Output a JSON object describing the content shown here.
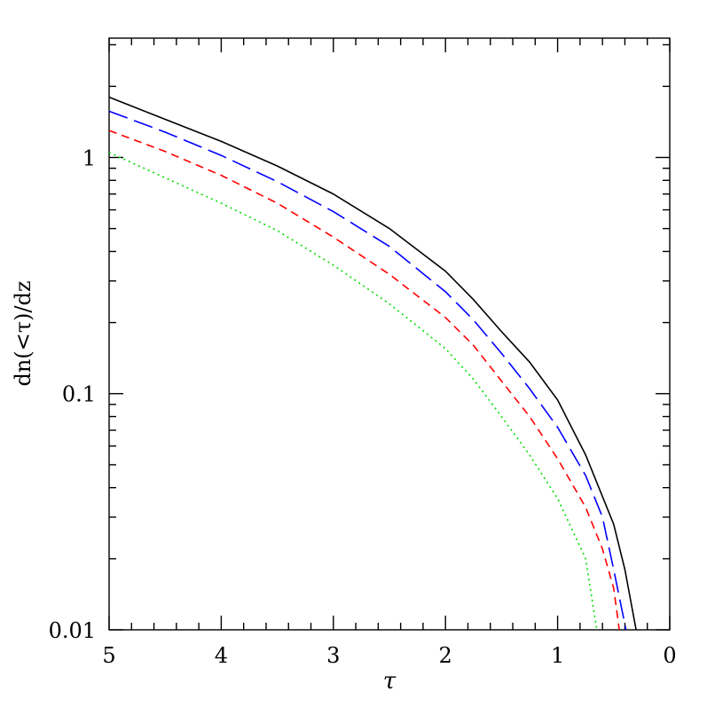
{
  "chart_data": {
    "type": "line",
    "title": "",
    "xlabel": "τ",
    "ylabel": "dn(<τ)/dz",
    "xlim": [
      5,
      0
    ],
    "x_reversed": true,
    "ylim": [
      0.01,
      3.2
    ],
    "yscale": "log",
    "grid": false,
    "legend": "none",
    "x_ticks": [
      {
        "value": 5,
        "label": "5"
      },
      {
        "value": 4,
        "label": "4"
      },
      {
        "value": 3,
        "label": "3"
      },
      {
        "value": 2,
        "label": "2"
      },
      {
        "value": 1,
        "label": "1"
      },
      {
        "value": 0,
        "label": "0"
      }
    ],
    "y_ticks": [
      {
        "value": 0.01,
        "label": "0.01"
      },
      {
        "value": 0.1,
        "label": "0.1"
      },
      {
        "value": 1,
        "label": "1"
      }
    ],
    "series": [
      {
        "style": "solid",
        "color": "#000000",
        "points": [
          [
            5,
            1.8
          ],
          [
            4.5,
            1.45
          ],
          [
            4,
            1.17
          ],
          [
            3.5,
            0.92
          ],
          [
            3,
            0.7
          ],
          [
            2.5,
            0.5
          ],
          [
            2,
            0.33
          ],
          [
            1.75,
            0.25
          ],
          [
            1.5,
            0.183
          ],
          [
            1.25,
            0.136
          ],
          [
            1,
            0.094
          ],
          [
            0.75,
            0.055
          ],
          [
            0.5,
            0.028
          ],
          [
            0.4,
            0.018
          ],
          [
            0.3,
            0.01
          ]
        ]
      },
      {
        "style": "long-dash",
        "color": "#0000ff",
        "points": [
          [
            5,
            1.57
          ],
          [
            4.5,
            1.28
          ],
          [
            4,
            1.02
          ],
          [
            3.5,
            0.79
          ],
          [
            3,
            0.59
          ],
          [
            2.5,
            0.42
          ],
          [
            2,
            0.27
          ],
          [
            1.75,
            0.205
          ],
          [
            1.5,
            0.148
          ],
          [
            1.25,
            0.105
          ],
          [
            1,
            0.072
          ],
          [
            0.75,
            0.045
          ],
          [
            0.6,
            0.03
          ],
          [
            0.5,
            0.018
          ],
          [
            0.39,
            0.01
          ]
        ]
      },
      {
        "style": "short-dash",
        "color": "#ff0000",
        "points": [
          [
            5,
            1.3
          ],
          [
            4.5,
            1.06
          ],
          [
            4,
            0.84
          ],
          [
            3.5,
            0.64
          ],
          [
            3,
            0.46
          ],
          [
            2.5,
            0.32
          ],
          [
            2,
            0.21
          ],
          [
            1.75,
            0.16
          ],
          [
            1.5,
            0.113
          ],
          [
            1.25,
            0.08
          ],
          [
            1,
            0.053
          ],
          [
            0.75,
            0.033
          ],
          [
            0.6,
            0.022
          ],
          [
            0.5,
            0.015
          ],
          [
            0.45,
            0.01
          ]
        ]
      },
      {
        "style": "dotted",
        "color": "#00dd00",
        "points": [
          [
            5,
            1.05
          ],
          [
            4.5,
            0.82
          ],
          [
            4,
            0.64
          ],
          [
            3.5,
            0.49
          ],
          [
            3,
            0.35
          ],
          [
            2.5,
            0.24
          ],
          [
            2,
            0.155
          ],
          [
            1.75,
            0.115
          ],
          [
            1.5,
            0.08
          ],
          [
            1.25,
            0.055
          ],
          [
            1,
            0.036
          ],
          [
            0.75,
            0.02
          ],
          [
            0.65,
            0.01
          ]
        ]
      }
    ]
  }
}
